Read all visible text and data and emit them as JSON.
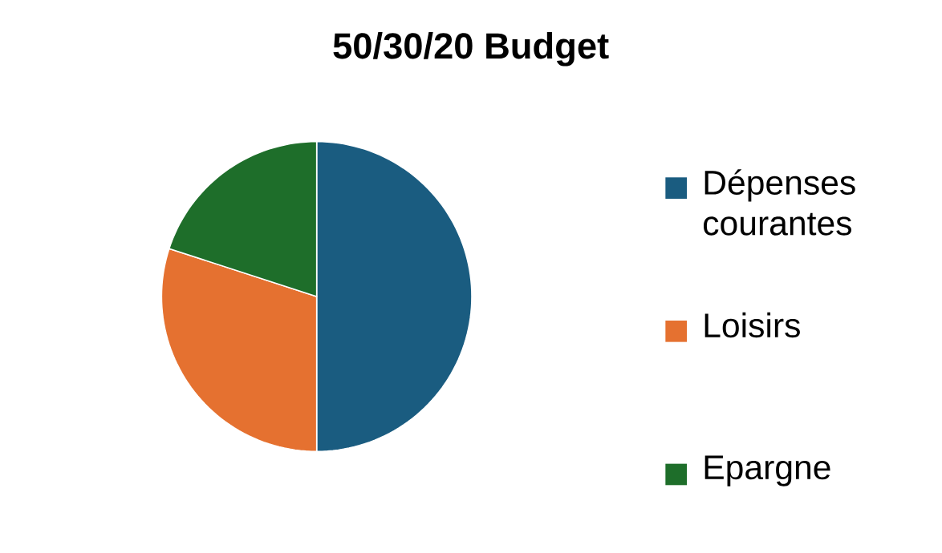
{
  "chart_data": {
    "type": "pie",
    "title": "50/30/20 Budget",
    "categories": [
      "Dépenses courantes",
      "Loisirs",
      "Epargne"
    ],
    "values": [
      50,
      30,
      20
    ],
    "colors": [
      "#1a5c80",
      "#e57130",
      "#1e6e2a"
    ],
    "legend": "right"
  }
}
